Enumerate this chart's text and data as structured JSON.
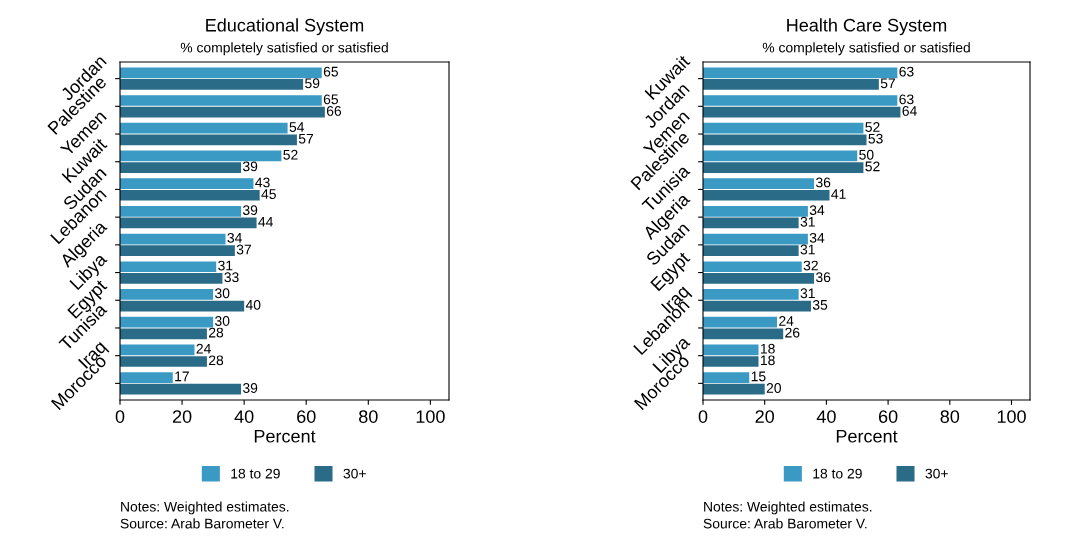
{
  "chart_data": [
    {
      "type": "bar",
      "orientation": "horizontal",
      "title": "Educational System",
      "subtitle": "% completely satisfied or satisfied",
      "xlabel": "Percent",
      "categories": [
        "Jordan",
        "Palestine",
        "Yemen",
        "Kuwait",
        "Sudan",
        "Lebanon",
        "Algeria",
        "Libya",
        "Egypt",
        "Tunisia",
        "Iraq",
        "Morocco"
      ],
      "series": [
        {
          "name": "18 to 29",
          "color": "#3b9ac4",
          "values": [
            65,
            65,
            54,
            52,
            43,
            39,
            34,
            31,
            30,
            30,
            24,
            17
          ]
        },
        {
          "name": "30+",
          "color": "#2a6b87",
          "values": [
            59,
            66,
            57,
            39,
            45,
            44,
            37,
            33,
            40,
            28,
            28,
            39
          ]
        }
      ],
      "xlim": [
        0,
        106
      ],
      "xticks": [
        0,
        20,
        40,
        60,
        80,
        100
      ],
      "data_labels": true,
      "legend": "bottom",
      "grid": false,
      "annotations": [
        "Notes: Weighted estimates.",
        "Source: Arab Barometer V."
      ]
    },
    {
      "type": "bar",
      "orientation": "horizontal",
      "title": "Health Care System",
      "subtitle": "% completely satisfied or satisfied",
      "xlabel": "Percent",
      "categories": [
        "Kuwait",
        "Jordan",
        "Yemen",
        "Palestine",
        "Tunisia",
        "Algeria",
        "Sudan",
        "Egypt",
        "Iraq",
        "Lebanon",
        "Libya",
        "Morocco"
      ],
      "series": [
        {
          "name": "18 to 29",
          "color": "#3b9ac4",
          "values": [
            63,
            63,
            52,
            50,
            36,
            34,
            34,
            32,
            31,
            24,
            18,
            15
          ]
        },
        {
          "name": "30+",
          "color": "#2a6b87",
          "values": [
            57,
            64,
            53,
            52,
            41,
            31,
            31,
            36,
            35,
            26,
            18,
            20
          ]
        }
      ],
      "xlim": [
        0,
        106
      ],
      "xticks": [
        0,
        20,
        40,
        60,
        80,
        100
      ],
      "data_labels": true,
      "legend": "bottom",
      "grid": false,
      "annotations": [
        "Notes: Weighted estimates.",
        "Source: Arab Barometer V."
      ]
    }
  ]
}
